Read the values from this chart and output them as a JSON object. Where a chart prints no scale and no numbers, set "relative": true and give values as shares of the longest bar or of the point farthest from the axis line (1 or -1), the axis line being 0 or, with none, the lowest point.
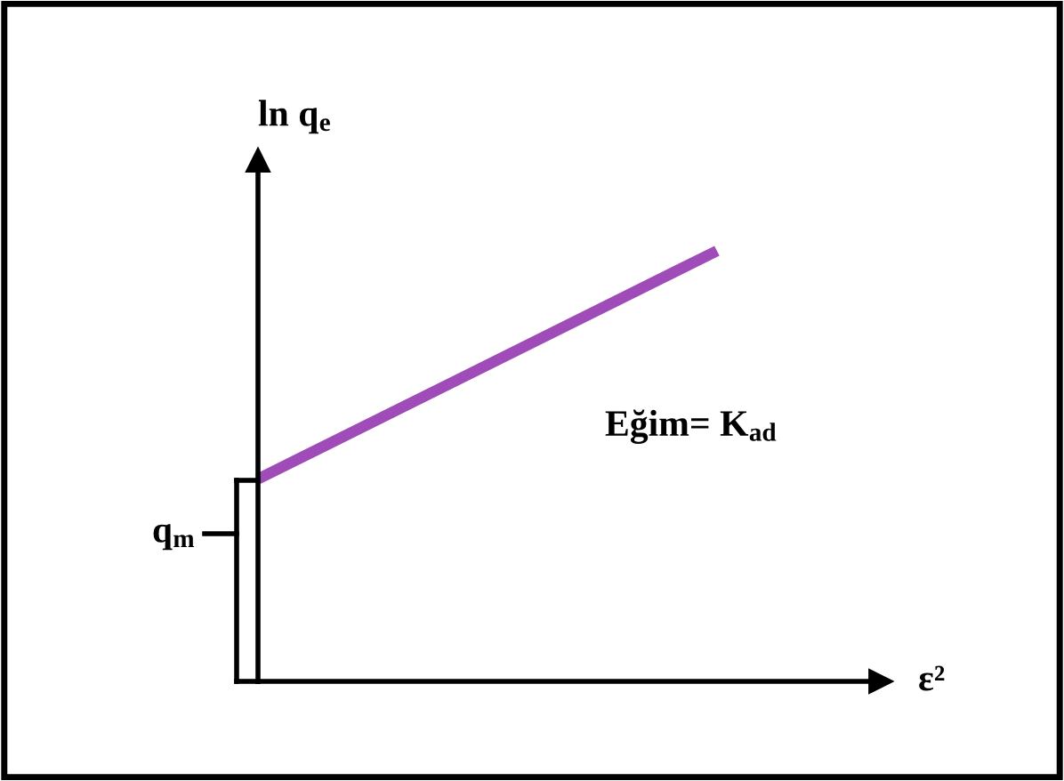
{
  "chart_data": {
    "type": "line",
    "relative": true,
    "xlabel": "ε²",
    "ylabel": "ln q$_{e}$",
    "categories": [
      null,
      null
    ],
    "series": [
      {
        "color": "#a04cb8",
        "values": [
          0.47,
          1
        ]
      }
    ],
    "annotations": [
      "Eğim= K$_{ad}$",
      "q$_{m}$"
    ],
    "grid": false,
    "marker": "none",
    "line_style": "solid"
  }
}
